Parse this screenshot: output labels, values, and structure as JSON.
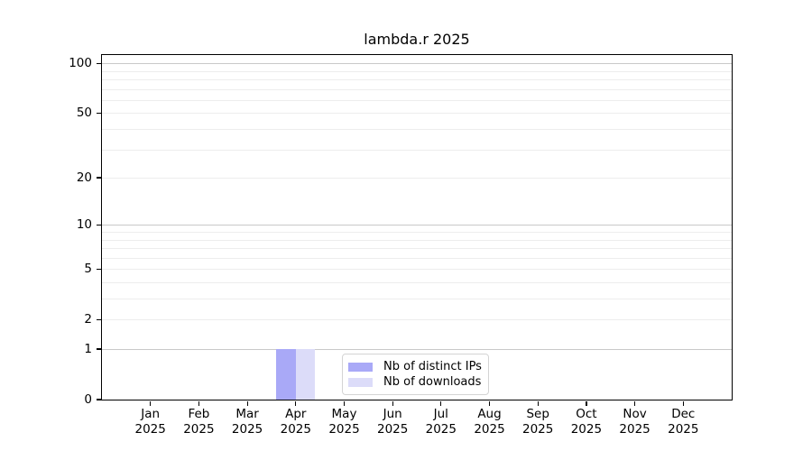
{
  "chart_data": {
    "type": "bar",
    "title": "lambda.r 2025",
    "categories": [
      "Jan",
      "Feb",
      "Mar",
      "Apr",
      "May",
      "Jun",
      "Jul",
      "Aug",
      "Sep",
      "Oct",
      "Nov",
      "Dec"
    ],
    "x_tick_sublabel": "2025",
    "series": [
      {
        "name": "Nb of distinct IPs",
        "color": "#a9a9f7",
        "values": [
          0,
          0,
          0,
          1,
          0,
          0,
          0,
          0,
          0,
          0,
          0,
          0
        ]
      },
      {
        "name": "Nb of downloads",
        "color": "#dcdcf9",
        "values": [
          0,
          0,
          0,
          1,
          0,
          0,
          0,
          0,
          0,
          0,
          0,
          0
        ]
      }
    ],
    "y_axis": {
      "scale": "log1p",
      "tick_values": [
        0,
        1,
        2,
        5,
        10,
        20,
        50,
        100
      ],
      "major_gridlines": [
        1,
        10,
        100
      ],
      "minor_gridlines": [
        2,
        3,
        4,
        5,
        6,
        7,
        8,
        9,
        20,
        30,
        40,
        50,
        60,
        70,
        80,
        90
      ],
      "ylim": [
        0,
        112
      ]
    },
    "legend_position": "bottom-center",
    "grid": "horizontal"
  },
  "colors": {
    "bar_distinct_ips": "#a9a9f7",
    "bar_downloads": "#dcdcf9",
    "major_grid": "#c9c9c9",
    "minor_grid": "#ededed",
    "axis_border": "#000000",
    "legend_border": "#d4d4d4"
  }
}
